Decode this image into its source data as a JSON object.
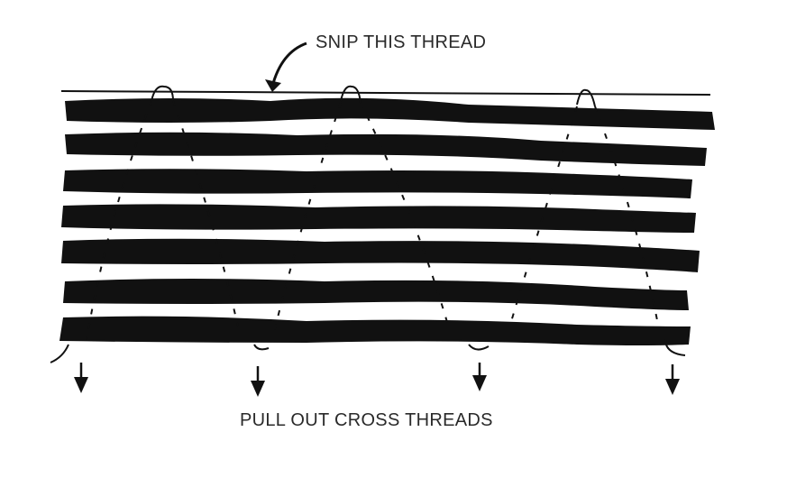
{
  "labels": {
    "top": "SNIP THIS THREAD",
    "bottom": "PULL OUT CROSS THREADS"
  },
  "colors": {
    "ink": "#111111",
    "text": "#2a2a2a",
    "background": "#ffffff"
  }
}
